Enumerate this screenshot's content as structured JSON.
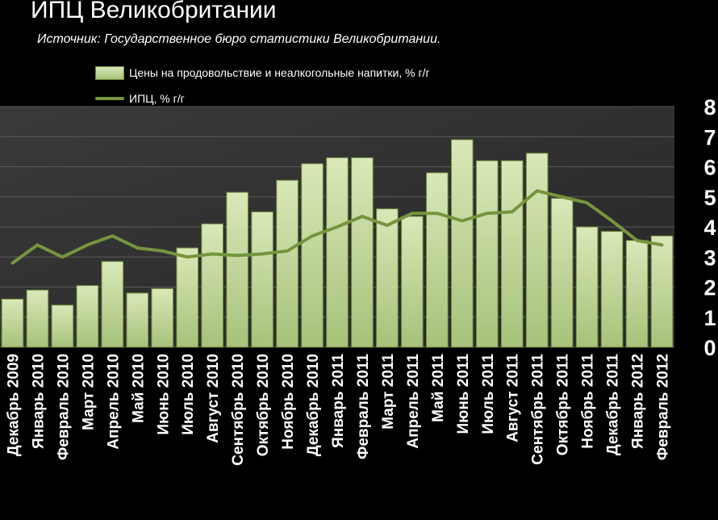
{
  "header": {
    "title": "ИПЦ Великобритании",
    "subtitle": "Источник: Государственное бюро статистики Великобритании."
  },
  "legend": {
    "bars_label": "Цены на продовольствие и неалкогольные напитки, % г/г",
    "line_label": "ИПЦ, % г/г"
  },
  "colors": {
    "background": "#000000",
    "plot_area": "#333333",
    "bar_light": "#d9e8b8",
    "bar_dark": "#a7c27a",
    "bar_edge": "#6f8a3c",
    "line": "#76953e"
  },
  "chart_data": {
    "type": "bar",
    "title": "ИПЦ Великобритании",
    "subtitle": "Источник: Государственное бюро статистики Великобритании.",
    "categories": [
      "Декабрь 2009",
      "Январь 2010",
      "Февраль 2010",
      "Март 2010",
      "Апрель 2010",
      "Май 2010",
      "Июнь 2010",
      "Июль 2010",
      "Август 2010",
      "Сентябрь 2010",
      "Октябрь 2010",
      "Ноябрь 2010",
      "Декабрь 2010",
      "Январь 2011",
      "Февраль 2011",
      "Март 2011",
      "Апрель 2011",
      "Май 2011",
      "Июнь 2011",
      "Июль 2011",
      "Август 2011",
      "Сентябрь 2011",
      "Октябрь 2011",
      "Ноябрь 2011",
      "Декабрь 2011",
      "Январь 2012",
      "Февраль 2012"
    ],
    "series": [
      {
        "name": "Цены на продовольствие и неалкогольные напитки, % г/г",
        "type": "bar",
        "values": [
          1.6,
          1.9,
          1.4,
          2.05,
          2.85,
          1.8,
          1.95,
          3.3,
          4.1,
          5.15,
          4.5,
          5.55,
          6.1,
          6.3,
          6.3,
          4.6,
          4.35,
          5.8,
          6.9,
          6.2,
          6.2,
          6.45,
          4.95,
          4.0,
          3.85,
          3.55,
          3.7
        ]
      },
      {
        "name": "ИПЦ, % г/г",
        "type": "line",
        "values": [
          2.8,
          3.4,
          3.0,
          3.4,
          3.7,
          3.3,
          3.2,
          3.0,
          3.1,
          3.05,
          3.1,
          3.2,
          3.7,
          4.0,
          4.35,
          4.05,
          4.45,
          4.45,
          4.2,
          4.45,
          4.5,
          5.2,
          5.0,
          4.8,
          4.2,
          3.55,
          3.4
        ]
      }
    ],
    "ylim": [
      0,
      8
    ],
    "yticks": [
      "0",
      "1",
      "2",
      "3",
      "4",
      "5",
      "6",
      "7",
      "8"
    ],
    "grid": true,
    "axis_position": "right"
  }
}
